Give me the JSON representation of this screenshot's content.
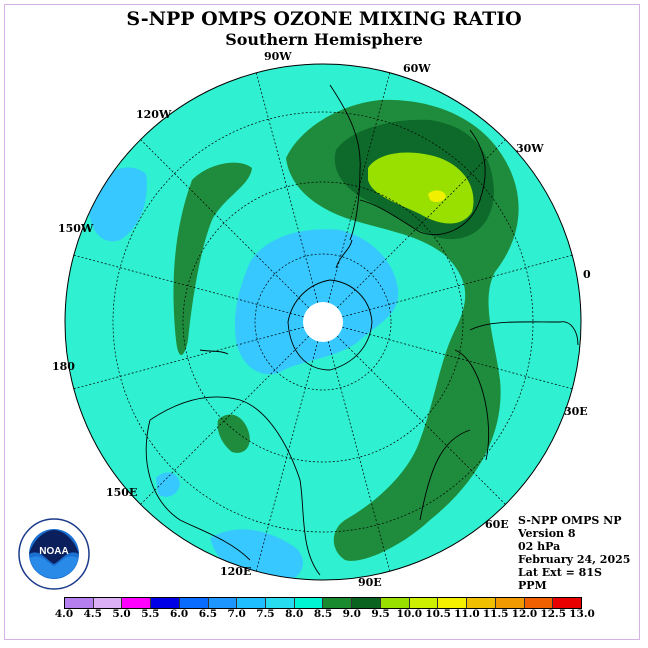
{
  "title": "S-NPP OMPS OZONE MIXING RATIO",
  "subtitle": "Southern Hemisphere",
  "longitude_labels": [
    "90W",
    "60W",
    "30W",
    "0",
    "30E",
    "60E",
    "90E",
    "120E",
    "150E",
    "180",
    "150W",
    "120W"
  ],
  "info": {
    "line1": "S-NPP OMPS NP",
    "line2": "Version 8",
    "line3": "02 hPa",
    "line4": "February 24, 2025",
    "line5": "Lat Ext = 81S",
    "line6": "PPM"
  },
  "logo": {
    "text": "NOAA",
    "icon": "noaa-logo-icon"
  },
  "colorbar": {
    "ticks": [
      "4.0",
      "4.5",
      "5.0",
      "5.5",
      "6.0",
      "6.5",
      "7.0",
      "7.5",
      "8.0",
      "8.5",
      "9.0",
      "9.5",
      "10.0",
      "10.5",
      "11.0",
      "11.5",
      "12.0",
      "12.5",
      "13.0"
    ],
    "colors": [
      "#b57fef",
      "#dcb0f5",
      "#ff00ff",
      "#0000e6",
      "#0a6cff",
      "#1e96ff",
      "#1ebeff",
      "#28dcf0",
      "#00f5d2",
      "#1a8a2e",
      "#0a6420",
      "#99e000",
      "#ccf000",
      "#f5f000",
      "#f0c000",
      "#f09a00",
      "#f06000",
      "#e80000",
      "#7a5a3a"
    ]
  },
  "map_colors": {
    "background": "#2ff0d0",
    "light_blue": "#36c8ff",
    "green": "#1e8c3c",
    "dark_green": "#0d6a2a",
    "lime": "#99e000",
    "yellow": "#f0f000"
  }
}
